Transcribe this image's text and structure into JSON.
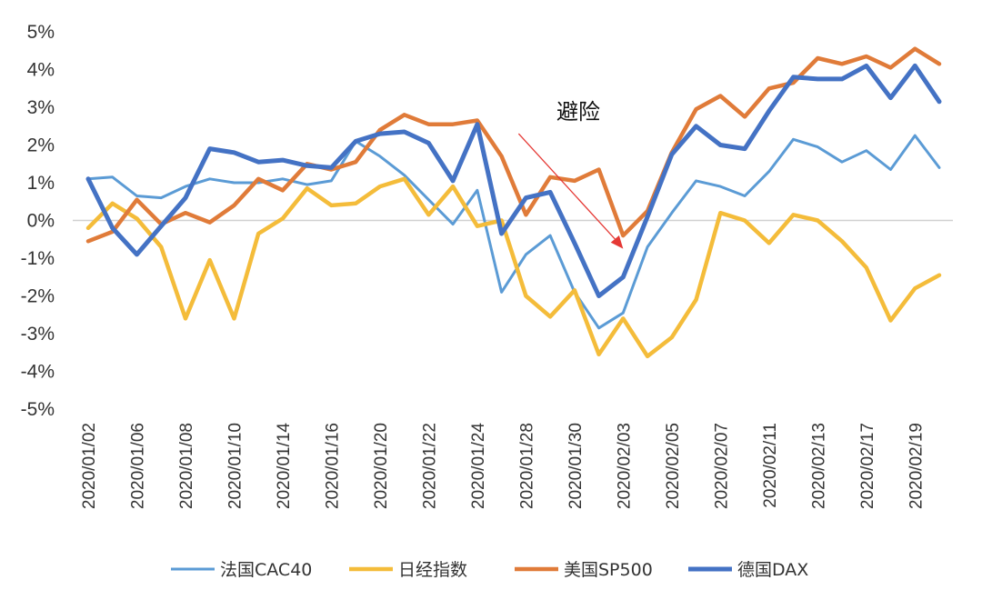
{
  "chart_data": {
    "type": "line",
    "title": "",
    "xlabel": "",
    "ylabel": "",
    "ylim": [
      -5,
      5
    ],
    "yticks": [
      "5%",
      "4%",
      "3%",
      "2%",
      "1%",
      "0%",
      "-1%",
      "-2%",
      "-3%",
      "-4%",
      "-5%"
    ],
    "ytick_values": [
      5,
      4,
      3,
      2,
      1,
      0,
      -1,
      -2,
      -3,
      -4,
      -5
    ],
    "grid": false,
    "zero_line": true,
    "legend_position": "bottom",
    "x": [
      "2020/01/02",
      "2020/01/03",
      "2020/01/06",
      "2020/01/07",
      "2020/01/08",
      "2020/01/09",
      "2020/01/10",
      "2020/01/13",
      "2020/01/14",
      "2020/01/15",
      "2020/01/16",
      "2020/01/17",
      "2020/01/20",
      "2020/01/21",
      "2020/01/22",
      "2020/01/23",
      "2020/01/24",
      "2020/01/27",
      "2020/01/28",
      "2020/01/29",
      "2020/01/30",
      "2020/01/31",
      "2020/02/03",
      "2020/02/04",
      "2020/02/05",
      "2020/02/06",
      "2020/02/07",
      "2020/02/10",
      "2020/02/11",
      "2020/02/12",
      "2020/02/13",
      "2020/02/14",
      "2020/02/17",
      "2020/02/18",
      "2020/02/19",
      "2020/02/20"
    ],
    "xtick_labels": [
      "2020/01/02",
      "2020/01/06",
      "2020/01/08",
      "2020/01/10",
      "2020/01/14",
      "2020/01/16",
      "2020/01/20",
      "2020/01/22",
      "2020/01/24",
      "2020/01/28",
      "2020/01/30",
      "2020/02/03",
      "2020/02/05",
      "2020/02/07",
      "2020/02/11",
      "2020/02/13",
      "2020/02/17",
      "2020/02/19"
    ],
    "series": [
      {
        "name": "法国CAC40",
        "color": "#5b9bd5",
        "width": 3,
        "values": [
          1.1,
          1.15,
          0.65,
          0.6,
          0.9,
          1.1,
          1.0,
          1.0,
          1.1,
          0.95,
          1.05,
          2.1,
          1.7,
          1.2,
          0.55,
          -0.1,
          0.8,
          -1.9,
          -0.9,
          -0.4,
          -1.9,
          -2.85,
          -2.45,
          -0.7,
          0.2,
          1.05,
          0.9,
          0.65,
          1.3,
          2.15,
          1.95,
          1.55,
          1.85,
          1.35,
          2.25,
          1.4
        ]
      },
      {
        "name": "日经指数",
        "color": "#f4bc3a",
        "width": 4.5,
        "values": [
          -0.2,
          0.45,
          0.05,
          -0.7,
          -2.6,
          -1.05,
          -2.6,
          -0.35,
          0.05,
          0.85,
          0.4,
          0.45,
          0.9,
          1.1,
          0.15,
          0.9,
          -0.15,
          0.0,
          -2.0,
          -2.55,
          -1.85,
          -3.55,
          -2.6,
          -3.6,
          -3.1,
          -2.1,
          0.2,
          0.0,
          -0.6,
          0.15,
          0.0,
          -0.55,
          -1.25,
          -2.65,
          -1.8,
          -1.45
        ]
      },
      {
        "name": "美国SP500",
        "color": "#e07b39",
        "width": 4.5,
        "values": [
          -0.55,
          -0.3,
          0.55,
          -0.1,
          0.2,
          -0.05,
          0.4,
          1.1,
          0.8,
          1.5,
          1.35,
          1.55,
          2.4,
          2.8,
          2.55,
          2.55,
          2.65,
          1.7,
          0.15,
          1.15,
          1.05,
          1.35,
          -0.4,
          0.25,
          1.8,
          2.95,
          3.3,
          2.75,
          3.5,
          3.65,
          4.3,
          4.15,
          4.35,
          4.05,
          4.55,
          4.15
        ]
      },
      {
        "name": "德国DAX",
        "color": "#4472c4",
        "width": 5,
        "values": [
          1.1,
          -0.2,
          -0.9,
          -0.15,
          0.6,
          1.9,
          1.8,
          1.55,
          1.6,
          1.45,
          1.4,
          2.1,
          2.3,
          2.35,
          2.05,
          1.05,
          2.55,
          -0.35,
          0.6,
          0.75,
          -0.6,
          -2.0,
          -1.5,
          0.1,
          1.75,
          2.5,
          2.0,
          1.9,
          2.9,
          3.8,
          3.75,
          3.75,
          4.1,
          3.25,
          4.1,
          3.15
        ]
      }
    ],
    "annotations": [
      {
        "text": "避险",
        "arrow_from": {
          "x": "2020/01/28",
          "y": 2.3
        },
        "arrow_to": {
          "x": "2020/02/03",
          "y": -0.75
        },
        "arrow_color": "#e53935"
      }
    ]
  }
}
